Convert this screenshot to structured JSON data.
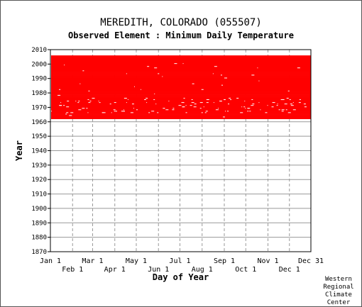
{
  "header": {
    "station": "MEREDITH, COLORADO   (055507)",
    "element": "Observed Element : Minimum Daily Temperature"
  },
  "credit": [
    "Western",
    "Regional",
    "Climate",
    "Center"
  ],
  "chart_data": {
    "type": "scatter",
    "title": "MEREDITH, COLORADO   (055507)",
    "subtitle": "Observed Element : Minimum Daily Temperature",
    "xlabel": "Day of Year",
    "ylabel": "Year",
    "ylim": [
      1870,
      2010
    ],
    "y_ticks": [
      1870,
      1880,
      1890,
      1900,
      1910,
      1920,
      1930,
      1940,
      1950,
      1960,
      1970,
      1980,
      1990,
      2000,
      2010
    ],
    "x_ticks_upper": [
      {
        "label": "Jan 1",
        "day": 1
      },
      {
        "label": "Mar 1",
        "day": 60
      },
      {
        "label": "May 1",
        "day": 121
      },
      {
        "label": "Jul 1",
        "day": 182
      },
      {
        "label": "Sep 1",
        "day": 244
      },
      {
        "label": "Nov 1",
        "day": 305
      },
      {
        "label": "Dec 31",
        "day": 365
      }
    ],
    "x_ticks_lower": [
      {
        "label": "Feb 1",
        "day": 32
      },
      {
        "label": "Apr 1",
        "day": 91
      },
      {
        "label": "Jun 1",
        "day": 152
      },
      {
        "label": "Aug 1",
        "day": 213
      },
      {
        "label": "Oct 1",
        "day": 274
      },
      {
        "label": "Dec 1",
        "day": 335
      }
    ],
    "grid": true,
    "data_color": "#ff0000",
    "coverage": {
      "description": "Observations recorded for nearly all days of the years 1962 through 2005; no data before 1962.",
      "first_year": 1962,
      "last_year": 2005
    }
  }
}
